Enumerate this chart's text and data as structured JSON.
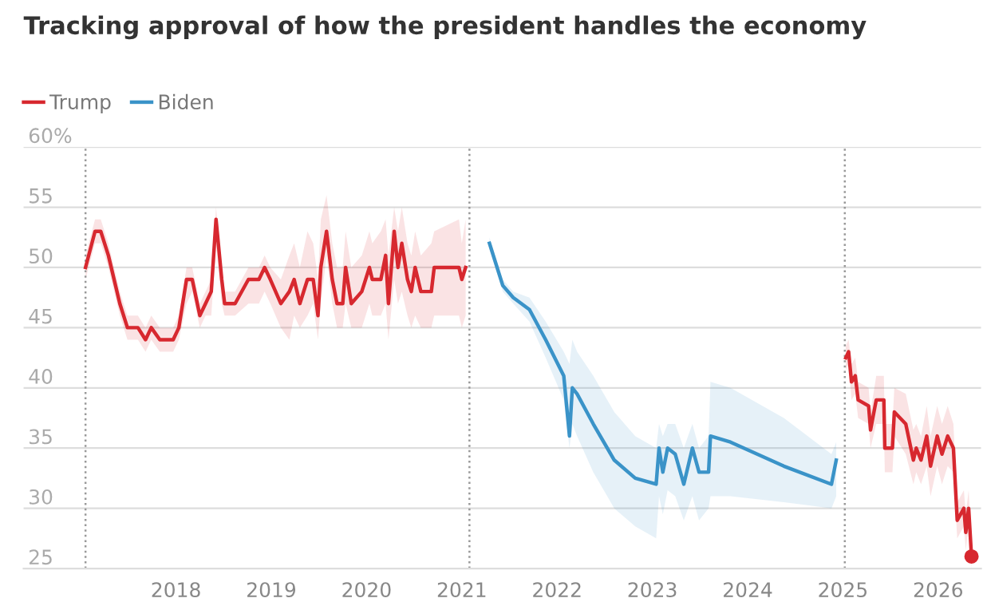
{
  "chart_data": {
    "type": "line",
    "title": "Tracking approval of how the president handles the economy",
    "series": [
      {
        "name": "Trump",
        "color": "#d7282f",
        "x": [
          2017.05,
          2017.15,
          2017.21,
          2017.29,
          2017.41,
          2017.49,
          2017.6,
          2017.68,
          2017.74,
          2017.83,
          2017.97,
          2018.03,
          2018.11,
          2018.17,
          2018.25,
          2018.31,
          2018.37,
          2018.42,
          2018.48,
          2018.51,
          2018.62,
          2018.76,
          2018.87,
          2018.93,
          2018.99,
          2019.1,
          2019.19,
          2019.24,
          2019.3,
          2019.38,
          2019.44,
          2019.49,
          2019.52,
          2019.58,
          2019.64,
          2019.69,
          2019.75,
          2019.78,
          2019.84,
          2019.95,
          2020.03,
          2020.06,
          2020.15,
          2020.2,
          2020.23,
          2020.29,
          2020.33,
          2020.37,
          2020.43,
          2020.47,
          2020.51,
          2020.57,
          2020.68,
          2020.71,
          2020.97,
          2021.0,
          2021.04
        ],
        "values": [
          50,
          53,
          53,
          51,
          47,
          45,
          45,
          44,
          45,
          44,
          44,
          45,
          49,
          49,
          46,
          47,
          48,
          54,
          49,
          47,
          47,
          49,
          49,
          50,
          49,
          47,
          48,
          49,
          47,
          49,
          49,
          46,
          50,
          53,
          49,
          47,
          47,
          50,
          47,
          48,
          50,
          49,
          49,
          51,
          47,
          53,
          50,
          52,
          49,
          48,
          50,
          48,
          48,
          50,
          50,
          49,
          50
        ],
        "lower": [
          49,
          52,
          52,
          50,
          46,
          44,
          44,
          43,
          44,
          43,
          43,
          44,
          47,
          48,
          45,
          46,
          46,
          52,
          47,
          46,
          46,
          47,
          47,
          48,
          47,
          45,
          44,
          46,
          45,
          46,
          47,
          44,
          47,
          51,
          47,
          45,
          45,
          47,
          45,
          45,
          47,
          46,
          46,
          47,
          44,
          49,
          47,
          48,
          46,
          45,
          46,
          45,
          45,
          46,
          46,
          45,
          46
        ],
        "upper": [
          51,
          54,
          54,
          52,
          48,
          46,
          46,
          45,
          46,
          45,
          45,
          46,
          50,
          50,
          47,
          48,
          49,
          55,
          50,
          48,
          48,
          50,
          50,
          51,
          50,
          49,
          51,
          52,
          50,
          53,
          52,
          49,
          54,
          56,
          52,
          50,
          50,
          53,
          50,
          51,
          53,
          52,
          53,
          54,
          51,
          55,
          53,
          55,
          52,
          51,
          53,
          51,
          52,
          53,
          54,
          52,
          54
        ]
      },
      {
        "name": "Biden",
        "color": "#3a93c8",
        "x": [
          2021.29,
          2021.43,
          2021.54,
          2021.71,
          2021.88,
          2022.07,
          2022.13,
          2022.16,
          2022.21,
          2022.38,
          2022.6,
          2022.82,
          2023.04,
          2023.07,
          2023.11,
          2023.16,
          2023.24,
          2023.33,
          2023.42,
          2023.49,
          2023.59,
          2023.61,
          2023.82,
          2024.38,
          2024.88,
          2024.93
        ],
        "values": [
          52,
          48.5,
          47.5,
          46.5,
          44,
          41,
          36,
          40,
          39.5,
          37,
          34,
          32.5,
          32,
          35,
          33,
          35,
          34.5,
          32,
          35,
          33,
          33,
          36,
          35.5,
          33.5,
          32,
          34
        ],
        "lower": [
          51.5,
          48,
          47,
          45.5,
          42.5,
          39,
          35,
          37,
          36,
          33,
          30,
          28.5,
          27.5,
          31,
          29.5,
          31.5,
          31,
          29,
          31,
          29,
          30,
          31,
          31,
          30.5,
          30,
          31
        ],
        "upper": [
          52.5,
          49,
          48,
          47.5,
          45.5,
          43,
          42,
          44,
          43,
          41,
          38,
          36,
          35,
          37,
          36,
          37,
          37,
          35,
          37,
          35,
          36,
          40.5,
          40,
          37.5,
          34.5,
          35.5
        ]
      },
      {
        "color": "#d7282f",
        "x": [
          2025.03,
          2025.06,
          2025.09,
          2025.13,
          2025.16,
          2025.27,
          2025.29,
          2025.35,
          2025.43,
          2025.44,
          2025.52,
          2025.54,
          2025.66,
          2025.74,
          2025.77,
          2025.82,
          2025.88,
          2025.92,
          2025.99,
          2026.04,
          2026.1,
          2026.16,
          2026.2,
          2026.27,
          2026.29,
          2026.32,
          2026.35
        ],
        "values": [
          42.5,
          43,
          40.5,
          41,
          39,
          38.5,
          36.5,
          39,
          39,
          35,
          35,
          38,
          37,
          34,
          35,
          34,
          36,
          33.5,
          36,
          34.5,
          36,
          35,
          29,
          30,
          28,
          30,
          26
        ],
        "lower": [
          41.5,
          42,
          39,
          39.5,
          37.5,
          37,
          35,
          37,
          37,
          33,
          33,
          36,
          34.5,
          32,
          33,
          32,
          33.5,
          31,
          33.5,
          32,
          33.5,
          33,
          27.5,
          28.5,
          26.5,
          28.5,
          25
        ],
        "upper": [
          43.5,
          44,
          42,
          42.5,
          40.5,
          40,
          38,
          41,
          41,
          37,
          37,
          40,
          39.5,
          36.5,
          37,
          36,
          38.5,
          36,
          38.5,
          37,
          38.5,
          37,
          30.5,
          31.5,
          29.5,
          31.5,
          27
        ]
      },
      {
        "type": "scatter",
        "marker": "circle",
        "color": "#d7282f",
        "x": [
          2026.35
        ],
        "values": [
          26
        ]
      }
    ],
    "xlim": [
      2016.4,
      2026.45
    ],
    "ylim": [
      25,
      60
    ],
    "xticks": [
      2018,
      2019,
      2020,
      2021,
      2022,
      2023,
      2024,
      2025,
      2026
    ],
    "yticks": [
      25,
      30,
      35,
      40,
      45,
      50,
      55,
      {
        "value": 60,
        "label": "60%"
      }
    ],
    "ref_lines": [
      {
        "axis": "x",
        "value": 2017.05,
        "color": "#999999",
        "line_style": "dotted"
      },
      {
        "axis": "x",
        "value": 2021.08,
        "color": "#999999",
        "line_style": "dotted"
      },
      {
        "axis": "x",
        "value": 2025.02,
        "color": "#999999",
        "line_style": "dotted"
      }
    ],
    "grid": "y",
    "legend": "top left"
  }
}
